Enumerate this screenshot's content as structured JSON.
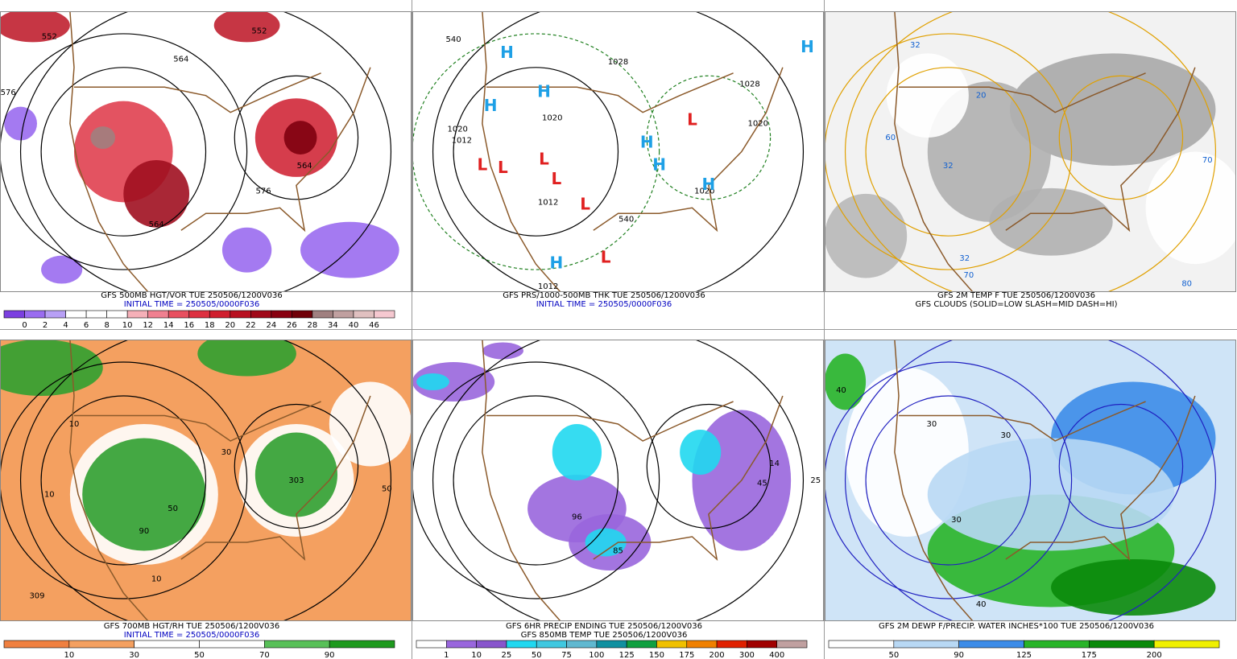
{
  "panels": [
    {
      "background": "#ffffff",
      "caption": [
        "GFS 500MB HGT/VOR TUE 250506/1200V036",
        "INITIAL TIME = 250505/0000F036"
      ],
      "caption_colors": [
        "#000000",
        "#0000c0"
      ],
      "map_labels": [
        "552",
        "564",
        "552",
        "576",
        "564",
        "576",
        "564"
      ],
      "colorbar": {
        "labels": [
          0,
          2,
          4,
          6,
          8,
          10,
          12,
          14,
          16,
          18,
          20,
          22,
          24,
          26,
          28,
          34,
          40,
          46
        ],
        "colors": [
          "#7b3fe0",
          "#9a6cf0",
          "#b8a0f5",
          "#ffffff",
          "#ffffff",
          "#ffffff",
          "#f5b0b8",
          "#f08090",
          "#e85060",
          "#dd3040",
          "#d01e2e",
          "#b81020",
          "#a00818",
          "#880010",
          "#700008",
          "#a08080",
          "#c0a0a0",
          "#e0c0c0",
          "#f5c8d0"
        ]
      }
    },
    {
      "background": "#ffffff",
      "caption": [
        "GFS PRS/1000-500MB THK TUE 250506/1200V036",
        "INITIAL TIME = 250505/0000F036"
      ],
      "caption_colors": [
        "#000000",
        "#0000c0"
      ],
      "map_labels": [
        "540",
        "1028",
        "1020",
        "1012",
        "1020",
        "1028",
        "1020",
        "1020",
        "1012",
        "540",
        "1012"
      ],
      "symbols": [
        {
          "text": "H",
          "color": "#1ea0e6"
        },
        {
          "text": "H",
          "color": "#1ea0e6"
        },
        {
          "text": "H",
          "color": "#1ea0e6"
        },
        {
          "text": "H",
          "color": "#1ea0e6"
        },
        {
          "text": "H",
          "color": "#1ea0e6"
        },
        {
          "text": "H",
          "color": "#1ea0e6"
        },
        {
          "text": "H",
          "color": "#1ea0e6"
        },
        {
          "text": "H",
          "color": "#1ea0e6"
        },
        {
          "text": "L",
          "color": "#e02020"
        },
        {
          "text": "L",
          "color": "#e02020"
        },
        {
          "text": "L",
          "color": "#e02020"
        },
        {
          "text": "L",
          "color": "#e02020"
        },
        {
          "text": "L",
          "color": "#e02020"
        },
        {
          "text": "L",
          "color": "#e02020"
        },
        {
          "text": "L",
          "color": "#e02020"
        }
      ]
    },
    {
      "background": "#f2f2f2",
      "caption": [
        "GFS 2M TEMP F TUE 250506/1200V036",
        "GFS CLOUDS (SOLID=LOW SLASH=MID DASH=HI)"
      ],
      "caption_colors": [
        "#000000",
        "#000000"
      ],
      "map_labels": [
        "32",
        "20",
        "32",
        "32",
        "60",
        "70",
        "70",
        "80"
      ]
    },
    {
      "background": "#f4a060",
      "caption": [
        "GFS 700MB HGT/RH TUE 250506/1200V036",
        "INITIAL TIME = 250505/0000F036"
      ],
      "caption_colors": [
        "#000000",
        "#0000c0"
      ],
      "map_labels": [
        "10",
        "10",
        "30",
        "50",
        "90",
        "309",
        "303",
        "50",
        "10"
      ],
      "colorbar": {
        "labels": [
          10,
          30,
          50,
          70,
          90
        ],
        "colors": [
          "#f08040",
          "#f4a060",
          "#ffffff",
          "#ffffff",
          "#58c058",
          "#1e9a1e"
        ]
      }
    },
    {
      "background": "#ffffff",
      "caption": [
        "GFS 6HR PRECIP ENDING TUE 250506/1200V036",
        "GFS 850MB TEMP TUE 250506/1200V036"
      ],
      "caption_colors": [
        "#000000",
        "#000000"
      ],
      "map_labels": [
        "96",
        "85",
        "25",
        "14",
        "45"
      ],
      "colorbar": {
        "labels": [
          1,
          10,
          25,
          50,
          75,
          100,
          125,
          150,
          175,
          200,
          300,
          400
        ],
        "colors": [
          "#ffffff",
          "#9966dd",
          "#8855cc",
          "#20d8f0",
          "#40c8e0",
          "#60b8d0",
          "#1090a0",
          "#10a040",
          "#f0c000",
          "#f08000",
          "#e02000",
          "#a00000",
          "#c0a0a0"
        ]
      }
    },
    {
      "background": "#cfe4f7",
      "caption": [
        "GFS 2M DEWP F/PRECIP. WATER INCHES*100 TUE 250506/1200V036"
      ],
      "caption_colors": [
        "#000000"
      ],
      "map_labels": [
        "40",
        "30",
        "30",
        "30",
        "40"
      ],
      "colorbar": {
        "labels": [
          50,
          90,
          125,
          175,
          200
        ],
        "colors": [
          "#ffffff",
          "#b8d8f4",
          "#3c8ce8",
          "#28b428",
          "#0a8a0a",
          "#f0f000"
        ]
      }
    }
  ]
}
